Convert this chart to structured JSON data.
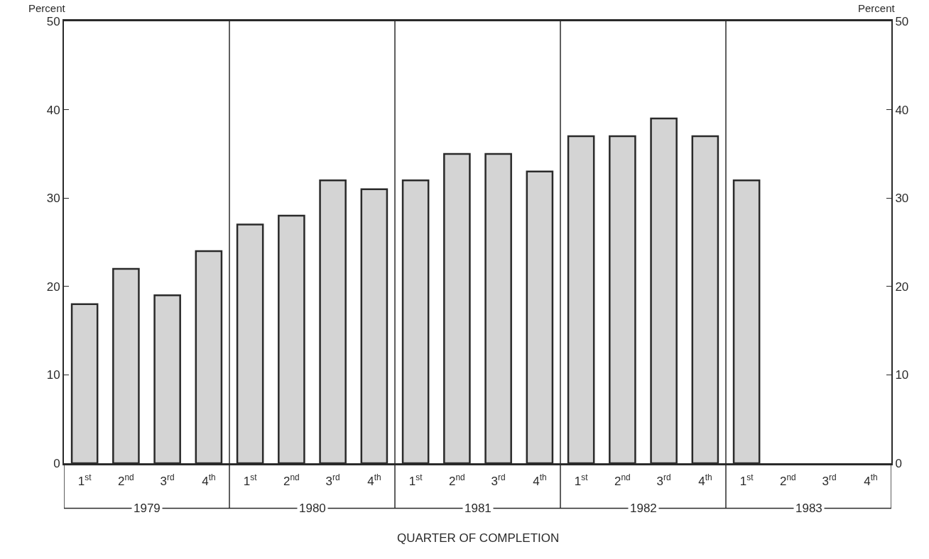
{
  "chart_data": {
    "type": "bar",
    "categories": [
      "1$^{st}$",
      "2$^{nd}$",
      "3$^{rd}$",
      "4$^{th}$",
      "1$^{st}$",
      "2$^{nd}$",
      "3$^{rd}$",
      "4$^{th}$",
      "1$^{st}$",
      "2$^{nd}$",
      "3$^{rd}$",
      "4$^{th}$",
      "1$^{st}$",
      "2$^{nd}$",
      "3$^{rd}$",
      "4$^{th}$",
      "1$^{st}$",
      "2$^{nd}$",
      "3$^{rd}$",
      "4$^{th}$"
    ],
    "values": [
      18,
      22,
      19,
      24,
      27,
      28,
      32,
      31,
      32,
      35,
      35,
      33,
      37,
      37,
      39,
      37,
      32,
      null,
      null,
      null
    ],
    "color": "#d4d4d4",
    "xlabel": "QUARTER OF COMPLETION",
    "ylabel": "Percent",
    "y2label": "Percent",
    "ylim": [
      0,
      50
    ],
    "yticks": [
      0,
      10,
      20,
      30,
      40,
      50
    ],
    "y2lim": [
      0,
      50
    ],
    "y2ticks": [
      0,
      10,
      20,
      30,
      40,
      50
    ],
    "annotations": [
      "1979",
      "1980",
      "1981",
      "1982",
      "1983"
    ]
  }
}
